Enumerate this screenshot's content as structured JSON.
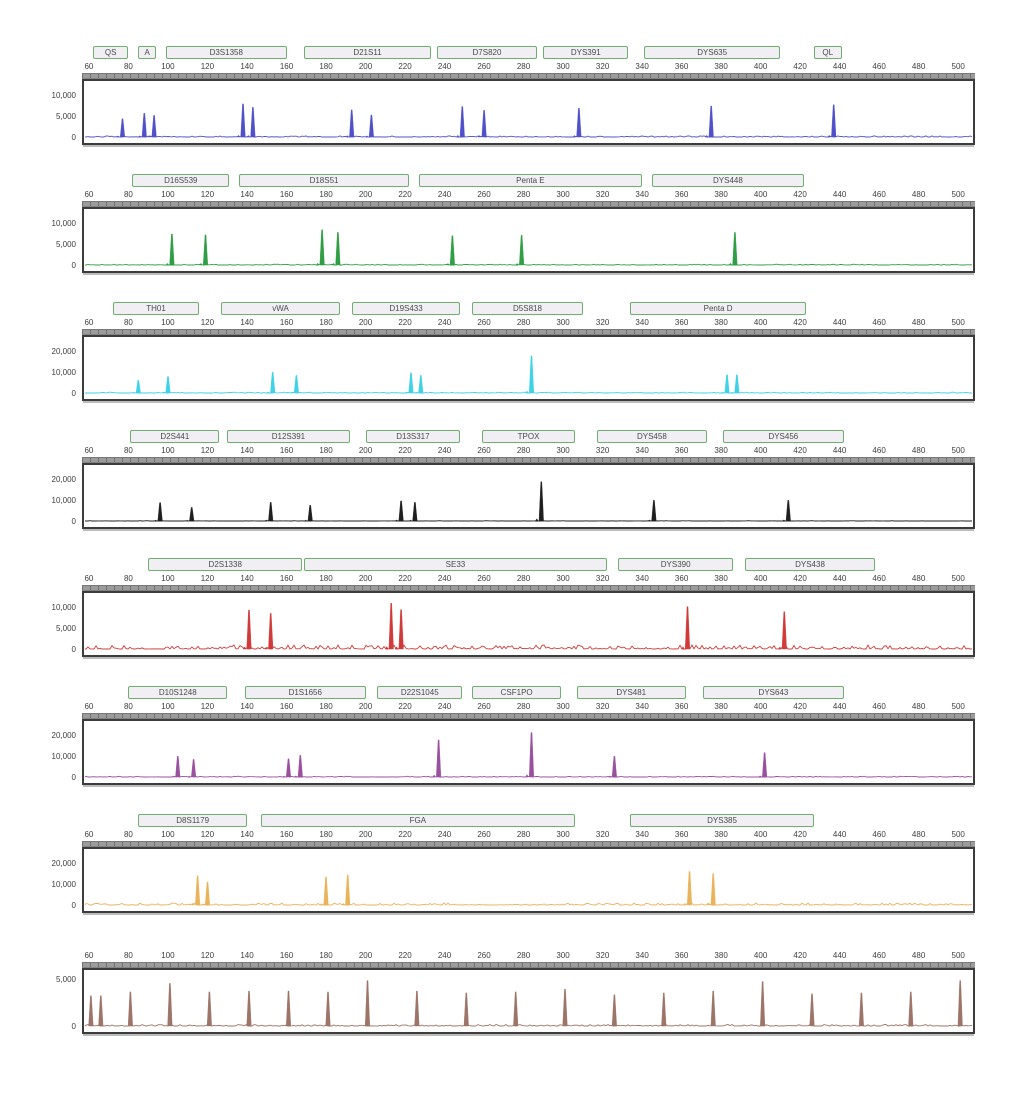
{
  "figure": {
    "description": "STR electropherogram, 8 dye channel panels",
    "x_axis": {
      "min": 56.5,
      "max": 506.5,
      "ticks": [
        60,
        80,
        100,
        120,
        140,
        160,
        180,
        200,
        220,
        240,
        260,
        280,
        300,
        320,
        340,
        360,
        380,
        400,
        420,
        440,
        460,
        480,
        500
      ]
    }
  },
  "chart_data": [
    {
      "type": "line",
      "name": "blue",
      "color": "#5050c8",
      "ymax": 12500,
      "noise": 260,
      "stutter": true,
      "y_ticks": [
        {
          "v": 10000,
          "label": "10,000"
        },
        {
          "v": 5000,
          "label": "5,000"
        },
        {
          "v": 0,
          "label": "0"
        }
      ],
      "markers": [
        {
          "name": "QS",
          "from": 62,
          "to": 80
        },
        {
          "name": "A",
          "from": 85,
          "to": 94
        },
        {
          "name": "D3S1358",
          "from": 99,
          "to": 160
        },
        {
          "name": "D21S11",
          "from": 169,
          "to": 233
        },
        {
          "name": "D7S820",
          "from": 236,
          "to": 287
        },
        {
          "name": "DYS391",
          "from": 290,
          "to": 333
        },
        {
          "name": "DYS635",
          "from": 341,
          "to": 410
        },
        {
          "name": "QL",
          "from": 427,
          "to": 441
        }
      ],
      "peaks": [
        {
          "bp": 76,
          "rfu": 4300
        },
        {
          "bp": 87,
          "rfu": 5600
        },
        {
          "bp": 92,
          "rfu": 5100
        },
        {
          "bp": 137,
          "rfu": 7800
        },
        {
          "bp": 142,
          "rfu": 7000
        },
        {
          "bp": 192,
          "rfu": 6400
        },
        {
          "bp": 202,
          "rfu": 5200
        },
        {
          "bp": 248,
          "rfu": 7200
        },
        {
          "bp": 259,
          "rfu": 6300
        },
        {
          "bp": 307,
          "rfu": 6800
        },
        {
          "bp": 374,
          "rfu": 7300
        },
        {
          "bp": 436,
          "rfu": 7600
        }
      ]
    },
    {
      "type": "line",
      "name": "green",
      "color": "#2f9e44",
      "ymax": 12500,
      "noise": 200,
      "stutter": true,
      "y_ticks": [
        {
          "v": 10000,
          "label": "10,000"
        },
        {
          "v": 5000,
          "label": "5,000"
        },
        {
          "v": 0,
          "label": "0"
        }
      ],
      "markers": [
        {
          "name": "D16S539",
          "from": 82,
          "to": 131
        },
        {
          "name": "D18S51",
          "from": 136,
          "to": 222
        },
        {
          "name": "Penta E",
          "from": 227,
          "to": 340
        },
        {
          "name": "DYS448",
          "from": 345,
          "to": 422
        }
      ],
      "peaks": [
        {
          "bp": 101,
          "rfu": 7300
        },
        {
          "bp": 118,
          "rfu": 7100
        },
        {
          "bp": 177,
          "rfu": 8300
        },
        {
          "bp": 185,
          "rfu": 7700
        },
        {
          "bp": 243,
          "rfu": 6900
        },
        {
          "bp": 278,
          "rfu": 7000
        },
        {
          "bp": 386,
          "rfu": 7700
        }
      ]
    },
    {
      "type": "line",
      "name": "cyan",
      "color": "#3fd2e6",
      "ymax": 25000,
      "noise": 420,
      "stutter": true,
      "y_ticks": [
        {
          "v": 20000,
          "label": "20,000"
        },
        {
          "v": 10000,
          "label": "10,000"
        },
        {
          "v": 0,
          "label": "0"
        }
      ],
      "markers": [
        {
          "name": "TH01",
          "from": 72,
          "to": 116
        },
        {
          "name": "vWA",
          "from": 127,
          "to": 187
        },
        {
          "name": "D19S433",
          "from": 193,
          "to": 248
        },
        {
          "name": "D5S818",
          "from": 254,
          "to": 310
        },
        {
          "name": "Penta D",
          "from": 334,
          "to": 423
        }
      ],
      "peaks": [
        {
          "bp": 84,
          "rfu": 6000
        },
        {
          "bp": 99,
          "rfu": 7800
        },
        {
          "bp": 152,
          "rfu": 9800
        },
        {
          "bp": 164,
          "rfu": 8300
        },
        {
          "bp": 222,
          "rfu": 9500
        },
        {
          "bp": 227,
          "rfu": 8300
        },
        {
          "bp": 283,
          "rfu": 17500
        },
        {
          "bp": 382,
          "rfu": 8600
        },
        {
          "bp": 387,
          "rfu": 8600
        }
      ]
    },
    {
      "type": "line",
      "name": "black",
      "color": "#1f1f1f",
      "ymax": 25000,
      "noise": 130,
      "stutter": true,
      "y_ticks": [
        {
          "v": 20000,
          "label": "20,000"
        },
        {
          "v": 10000,
          "label": "10,000"
        },
        {
          "v": 0,
          "label": "0"
        }
      ],
      "markers": [
        {
          "name": "D2S441",
          "from": 81,
          "to": 126
        },
        {
          "name": "D12S391",
          "from": 130,
          "to": 192
        },
        {
          "name": "D13S317",
          "from": 200,
          "to": 248
        },
        {
          "name": "TPOX",
          "from": 259,
          "to": 306
        },
        {
          "name": "DYS458",
          "from": 317,
          "to": 373
        },
        {
          "name": "DYS456",
          "from": 381,
          "to": 442
        }
      ],
      "peaks": [
        {
          "bp": 95,
          "rfu": 8700
        },
        {
          "bp": 111,
          "rfu": 6400
        },
        {
          "bp": 151,
          "rfu": 8800
        },
        {
          "bp": 171,
          "rfu": 7400
        },
        {
          "bp": 217,
          "rfu": 9500
        },
        {
          "bp": 224,
          "rfu": 8800
        },
        {
          "bp": 288,
          "rfu": 18500
        },
        {
          "bp": 345,
          "rfu": 9800
        },
        {
          "bp": 413,
          "rfu": 9800
        }
      ]
    },
    {
      "type": "line",
      "name": "red",
      "color": "#d23a3a",
      "ymax": 12500,
      "noise": 950,
      "stutter": true,
      "y_ticks": [
        {
          "v": 10000,
          "label": "10,000"
        },
        {
          "v": 5000,
          "label": "5,000"
        },
        {
          "v": 0,
          "label": "0"
        }
      ],
      "markers": [
        {
          "name": "D2S1338",
          "from": 90,
          "to": 168
        },
        {
          "name": "SE33",
          "from": 169,
          "to": 322
        },
        {
          "name": "DYS390",
          "from": 328,
          "to": 386
        },
        {
          "name": "DYS438",
          "from": 392,
          "to": 458
        }
      ],
      "peaks": [
        {
          "bp": 140,
          "rfu": 9200
        },
        {
          "bp": 151,
          "rfu": 8400
        },
        {
          "bp": 212,
          "rfu": 10800
        },
        {
          "bp": 217,
          "rfu": 9300
        },
        {
          "bp": 362,
          "rfu": 10000
        },
        {
          "bp": 411,
          "rfu": 8800
        }
      ]
    },
    {
      "type": "line",
      "name": "purple",
      "color": "#99519d",
      "ymax": 25000,
      "noise": 380,
      "stutter": true,
      "y_ticks": [
        {
          "v": 20000,
          "label": "20,000"
        },
        {
          "v": 10000,
          "label": "10,000"
        },
        {
          "v": 0,
          "label": "0"
        }
      ],
      "markers": [
        {
          "name": "D10S1248",
          "from": 80,
          "to": 130
        },
        {
          "name": "D1S1656",
          "from": 139,
          "to": 200
        },
        {
          "name": "D22S1045",
          "from": 206,
          "to": 249
        },
        {
          "name": "CSF1PO",
          "from": 254,
          "to": 299
        },
        {
          "name": "DYS481",
          "from": 307,
          "to": 362
        },
        {
          "name": "DYS643",
          "from": 371,
          "to": 442
        }
      ],
      "peaks": [
        {
          "bp": 104,
          "rfu": 9800
        },
        {
          "bp": 112,
          "rfu": 8300
        },
        {
          "bp": 160,
          "rfu": 8600
        },
        {
          "bp": 166,
          "rfu": 10300
        },
        {
          "bp": 236,
          "rfu": 17500
        },
        {
          "bp": 283,
          "rfu": 21000
        },
        {
          "bp": 325,
          "rfu": 9800
        },
        {
          "bp": 401,
          "rfu": 11500
        }
      ]
    },
    {
      "type": "line",
      "name": "orange",
      "color": "#e9b35a",
      "ymax": 25000,
      "noise": 950,
      "stutter": true,
      "y_ticks": [
        {
          "v": 20000,
          "label": "20,000"
        },
        {
          "v": 10000,
          "label": "10,000"
        },
        {
          "v": 0,
          "label": "0"
        }
      ],
      "markers": [
        {
          "name": "D8S1179",
          "from": 85,
          "to": 140
        },
        {
          "name": "FGA",
          "from": 147,
          "to": 306
        },
        {
          "name": "DYS385",
          "from": 334,
          "to": 427
        }
      ],
      "peaks": [
        {
          "bp": 114,
          "rfu": 13800
        },
        {
          "bp": 119,
          "rfu": 10800
        },
        {
          "bp": 179,
          "rfu": 13200
        },
        {
          "bp": 190,
          "rfu": 14200
        },
        {
          "bp": 363,
          "rfu": 15800
        },
        {
          "bp": 375,
          "rfu": 14800
        }
      ]
    },
    {
      "type": "line",
      "name": "ladder",
      "color": "#9c7468",
      "ymax": 5600,
      "noise": 160,
      "stutter": false,
      "y_ticks": [
        {
          "v": 5000,
          "label": "5,000"
        },
        {
          "v": 0,
          "label": "0"
        }
      ],
      "markers": [],
      "peaks": [
        {
          "bp": 60,
          "rfu": 3200
        },
        {
          "bp": 65,
          "rfu": 3200
        },
        {
          "bp": 80,
          "rfu": 3600
        },
        {
          "bp": 100,
          "rfu": 4500
        },
        {
          "bp": 120,
          "rfu": 3600
        },
        {
          "bp": 140,
          "rfu": 3700
        },
        {
          "bp": 160,
          "rfu": 3700
        },
        {
          "bp": 180,
          "rfu": 3600
        },
        {
          "bp": 200,
          "rfu": 4800
        },
        {
          "bp": 225,
          "rfu": 3700
        },
        {
          "bp": 250,
          "rfu": 3500
        },
        {
          "bp": 275,
          "rfu": 3600
        },
        {
          "bp": 300,
          "rfu": 3900
        },
        {
          "bp": 325,
          "rfu": 3300
        },
        {
          "bp": 350,
          "rfu": 3500
        },
        {
          "bp": 375,
          "rfu": 3700
        },
        {
          "bp": 400,
          "rfu": 4700
        },
        {
          "bp": 425,
          "rfu": 3400
        },
        {
          "bp": 450,
          "rfu": 3500
        },
        {
          "bp": 475,
          "rfu": 3600
        },
        {
          "bp": 500,
          "rfu": 4800
        }
      ]
    }
  ]
}
